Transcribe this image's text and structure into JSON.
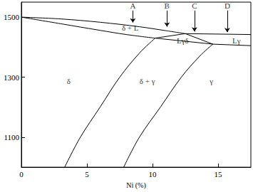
{
  "chart_data": {
    "type": "line",
    "x_label": "Ni (%)",
    "xlim": [
      0,
      17.5
    ],
    "xticks": [
      0,
      5,
      10,
      15
    ],
    "ylim": [
      1000,
      1550
    ],
    "yticks": [
      1100,
      1300,
      1500
    ],
    "grid": false,
    "color": "#000000",
    "series": [
      {
        "x": [
          0,
          3,
          6,
          9,
          11,
          12.5
        ],
        "values": [
          1500,
          1494,
          1483,
          1468,
          1455,
          1445
        ]
      },
      {
        "x": [
          12.5,
          17.5
        ],
        "values": [
          1445,
          1442
        ]
      },
      {
        "x": [
          0,
          3,
          6,
          8,
          10.2
        ],
        "values": [
          1500,
          1478,
          1456,
          1442,
          1430
        ]
      },
      {
        "x": [
          10.2,
          12.5
        ],
        "values": [
          1430,
          1445
        ]
      },
      {
        "x": [
          10.2,
          14.6
        ],
        "values": [
          1430,
          1410
        ]
      },
      {
        "x": [
          12.5,
          14.6
        ],
        "values": [
          1445,
          1410
        ]
      },
      {
        "x": [
          14.6,
          17.5
        ],
        "values": [
          1410,
          1405
        ]
      },
      {
        "x": [
          3.3,
          4.5,
          6,
          7.5,
          9,
          10.2
        ],
        "values": [
          1000,
          1100,
          1200,
          1300,
          1380,
          1430
        ]
      },
      {
        "x": [
          7.8,
          9,
          10.6,
          12.2,
          13.6,
          14.6
        ],
        "values": [
          1000,
          1100,
          1200,
          1300,
          1370,
          1410
        ]
      }
    ],
    "annotations": [
      {
        "text": "δ + L",
        "x": 8.3,
        "y": 1465
      },
      {
        "text": "Lγδ",
        "x": 12.3,
        "y": 1421
      },
      {
        "text": "Lγ",
        "x": 16.4,
        "y": 1421
      },
      {
        "text": "δ",
        "x": 3.6,
        "y": 1286
      },
      {
        "text": "δ + γ",
        "x": 9.6,
        "y": 1286
      },
      {
        "text": "γ",
        "x": 14.5,
        "y": 1286
      }
    ],
    "arrows": [
      {
        "label": "A",
        "x": 8.5,
        "y_start": 1522,
        "y_end": 1482
      },
      {
        "label": "B",
        "x": 11.1,
        "y_start": 1522,
        "y_end": 1468
      },
      {
        "label": "C",
        "x": 13.2,
        "y_start": 1522,
        "y_end": 1452
      },
      {
        "label": "D",
        "x": 15.7,
        "y_start": 1522,
        "y_end": 1450
      }
    ]
  }
}
